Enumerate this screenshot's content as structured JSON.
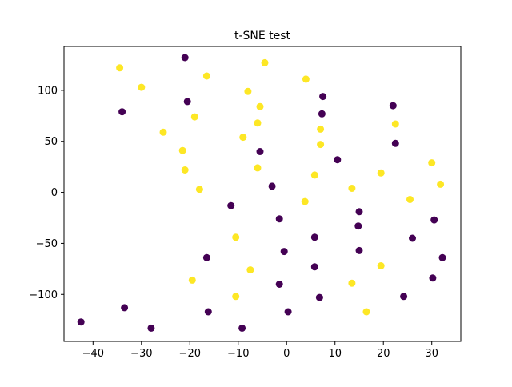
{
  "chart_data": {
    "type": "scatter",
    "title": "t-SNE test",
    "xlabel": "",
    "ylabel": "",
    "xlim": [
      -46,
      36
    ],
    "ylim": [
      -146,
      143
    ],
    "xticks": [
      -40,
      -30,
      -20,
      -10,
      0,
      10,
      20,
      30
    ],
    "yticks": [
      -100,
      -50,
      0,
      50,
      100
    ],
    "xtick_labels": [
      "−40",
      "−30",
      "−20",
      "−10",
      "0",
      "10",
      "20",
      "30"
    ],
    "ytick_labels": [
      "−100",
      "−50",
      "0",
      "50",
      "100"
    ],
    "grid": false,
    "legend": false,
    "colors": {
      "class_0": "#440154",
      "class_1": "#fde725"
    },
    "series": [
      {
        "class": 0,
        "color": "#440154",
        "points": [
          [
            -21,
            132
          ],
          [
            -34,
            79
          ],
          [
            -20.5,
            89
          ],
          [
            7.5,
            94
          ],
          [
            7.3,
            77
          ],
          [
            22,
            85
          ],
          [
            -5.5,
            40
          ],
          [
            22.5,
            48
          ],
          [
            10.5,
            32
          ],
          [
            -3,
            6
          ],
          [
            -11.5,
            -13
          ],
          [
            -1.5,
            -26
          ],
          [
            15,
            -19
          ],
          [
            14.8,
            -33
          ],
          [
            30.5,
            -27
          ],
          [
            5.8,
            -44
          ],
          [
            26,
            -45
          ],
          [
            -0.5,
            -58
          ],
          [
            15,
            -57
          ],
          [
            -16.5,
            -64
          ],
          [
            32.2,
            -64
          ],
          [
            5.8,
            -73
          ],
          [
            -1.5,
            -90
          ],
          [
            30.2,
            -84
          ],
          [
            6.8,
            -103
          ],
          [
            24.2,
            -102
          ],
          [
            -33.5,
            -113
          ],
          [
            -16.2,
            -117
          ],
          [
            0.3,
            -117
          ],
          [
            -42.5,
            -127
          ],
          [
            -28,
            -133
          ],
          [
            -9.2,
            -133
          ]
        ]
      },
      {
        "class": 1,
        "color": "#fde725",
        "points": [
          [
            -34.5,
            122
          ],
          [
            -4.5,
            127
          ],
          [
            -16.5,
            114
          ],
          [
            -30,
            103
          ],
          [
            4,
            111
          ],
          [
            -8,
            99
          ],
          [
            -5.5,
            84
          ],
          [
            -19,
            74
          ],
          [
            -6,
            68
          ],
          [
            7,
            62
          ],
          [
            22.5,
            67
          ],
          [
            -25.5,
            59
          ],
          [
            -9,
            54
          ],
          [
            7,
            47
          ],
          [
            -21.5,
            41
          ],
          [
            -6,
            24
          ],
          [
            -21,
            22
          ],
          [
            5.8,
            17
          ],
          [
            19.5,
            19
          ],
          [
            30,
            29
          ],
          [
            -18,
            3
          ],
          [
            13.5,
            4
          ],
          [
            25.5,
            -7
          ],
          [
            31.8,
            8
          ],
          [
            3.8,
            -9
          ],
          [
            -10.5,
            -44
          ],
          [
            19.5,
            -72
          ],
          [
            -7.5,
            -76
          ],
          [
            -19.5,
            -86
          ],
          [
            13.5,
            -89
          ],
          [
            -10.5,
            -102
          ],
          [
            16.5,
            -117
          ]
        ]
      }
    ]
  }
}
